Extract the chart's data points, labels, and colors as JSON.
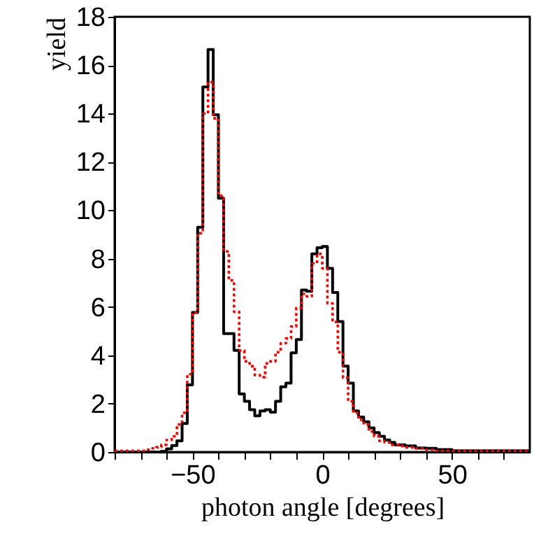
{
  "chart_data": {
    "type": "histogram",
    "xlabel": "photon angle [degrees]",
    "ylabel": "yield",
    "bins": [
      -80,
      -78,
      -76,
      -74,
      -72,
      -70,
      -68,
      -66,
      -64,
      -62,
      -60,
      -58,
      -56,
      -54,
      -52,
      -50,
      -48,
      -46,
      -44,
      -42,
      -40,
      -38,
      -36,
      -34,
      -32,
      -30,
      -28,
      -26,
      -24,
      -22,
      -20,
      -18,
      -16,
      -14,
      -12,
      -10,
      -8,
      -6,
      -4,
      -2,
      0,
      2,
      4,
      6,
      8,
      10,
      12,
      14,
      16,
      18,
      20,
      22,
      24,
      26,
      28,
      30,
      32,
      34,
      36,
      38,
      40,
      42,
      44,
      46,
      48,
      50,
      52,
      54,
      56,
      58,
      60,
      62,
      64,
      66,
      68,
      70,
      72,
      74,
      76,
      78,
      80
    ],
    "series": [
      {
        "color": "#000000",
        "line_style": "solid",
        "values": [
          0,
          0,
          0,
          0,
          0,
          0,
          0,
          0,
          0,
          0.03,
          0.13,
          0.27,
          0.46,
          1.18,
          2.78,
          5.77,
          9.3,
          15.1,
          16.65,
          13.95,
          10.5,
          4.9,
          4.9,
          4.2,
          2.4,
          2.1,
          1.75,
          1.5,
          1.7,
          1.75,
          1.65,
          2.1,
          2.7,
          2.85,
          4.1,
          4.65,
          6.7,
          6.65,
          8.2,
          8.45,
          8.5,
          7.6,
          6.6,
          5.4,
          3.55,
          2.85,
          1.7,
          1.45,
          1.25,
          1.0,
          0.8,
          0.65,
          0.5,
          0.4,
          0.3,
          0.3,
          0.25,
          0.25,
          0.17,
          0.17,
          0.15,
          0.15,
          0.1,
          0.1,
          0.1,
          0.05,
          0.05,
          0.05,
          0.05,
          0.05,
          0.05,
          0.05,
          0.05,
          0.05,
          0.05,
          0.05,
          0.05,
          0.05,
          0.05,
          0.05
        ]
      },
      {
        "color": "#ff0000",
        "line_style": "dotted",
        "values": [
          0.05,
          0.05,
          0.05,
          0.05,
          0.05,
          0.05,
          0.1,
          0.15,
          0.2,
          0.3,
          0.5,
          0.65,
          1.14,
          1.62,
          3.22,
          5.77,
          9.05,
          14.0,
          15.3,
          13.8,
          10.6,
          8.3,
          7.1,
          5.8,
          4.2,
          3.75,
          3.55,
          3.18,
          3.1,
          3.67,
          3.75,
          4.13,
          4.5,
          4.7,
          5.19,
          5.96,
          6.54,
          6.44,
          7.8,
          8.2,
          7.6,
          6.15,
          5.38,
          4.13,
          3.07,
          2.1,
          1.62,
          1.33,
          1.14,
          0.85,
          0.65,
          0.46,
          0.4,
          0.3,
          0.3,
          0.25,
          0.2,
          0.2,
          0.15,
          0.15,
          0.1,
          0.1,
          0.05,
          0.05,
          0.05,
          0.05,
          0.05,
          0.05,
          0.05,
          0.05,
          0.05,
          0.05,
          0.05,
          0.05,
          0.05,
          0.05,
          0.05,
          0.05,
          0.05,
          0.05
        ]
      }
    ],
    "xlim": [
      -80,
      80
    ],
    "xticks": [
      {
        "value": -80,
        "label": null
      },
      {
        "value": -70,
        "label": null
      },
      {
        "value": -60,
        "label": null
      },
      -50,
      {
        "value": -40,
        "label": null
      },
      {
        "value": -30,
        "label": null
      },
      {
        "value": -20,
        "label": null
      },
      {
        "value": -10,
        "label": null
      },
      0,
      {
        "value": 10,
        "label": null
      },
      {
        "value": 20,
        "label": null
      },
      {
        "value": 30,
        "label": null
      },
      {
        "value": 40,
        "label": null
      },
      50,
      {
        "value": 60,
        "label": null
      },
      {
        "value": 70,
        "label": null
      }
    ],
    "ylim": [
      0,
      18
    ],
    "yticks": [
      0,
      2,
      4,
      6,
      8,
      10,
      12,
      14,
      16,
      18
    ],
    "grid": false
  }
}
